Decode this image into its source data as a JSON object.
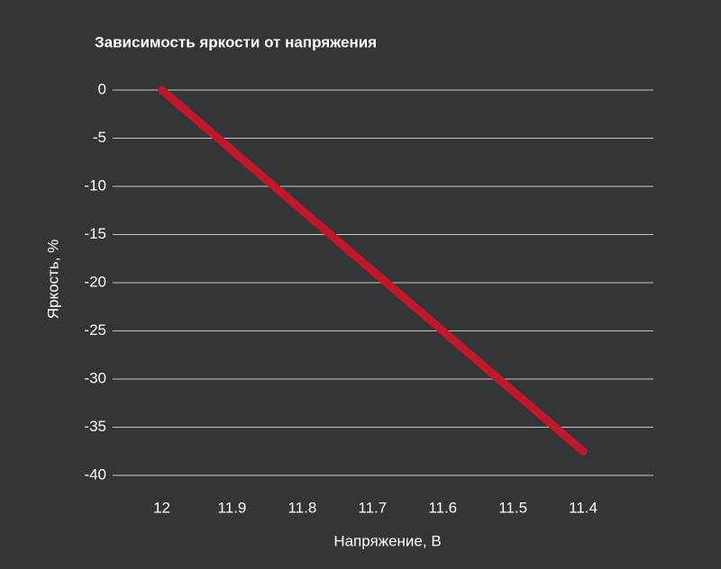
{
  "chart_data": {
    "type": "line",
    "title": "Зависимость яркости от напряжения",
    "x_label": "Напряжение, В",
    "y_label": "Яркость, %",
    "x": [
      12,
      11.4
    ],
    "values": [
      0,
      -37.5
    ],
    "color": "#c0182a",
    "xlim": [
      12.07,
      11.3
    ],
    "xticks": [
      12,
      11.9,
      11.8,
      11.7,
      11.6,
      11.5,
      11.4
    ],
    "ylim": [
      -40,
      0
    ],
    "yticks": [
      0,
      -5,
      -10,
      -15,
      -20,
      -25,
      -30,
      -35,
      -40
    ],
    "grid": true
  }
}
